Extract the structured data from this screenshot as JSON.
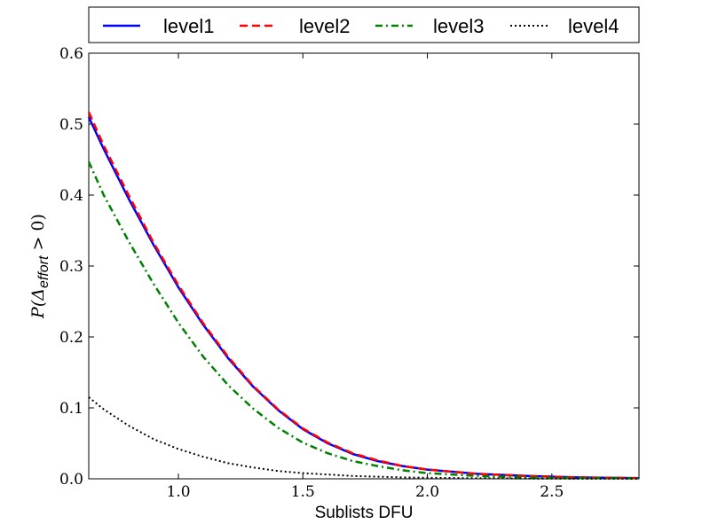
{
  "chart_data": {
    "type": "line",
    "xlabel": "Sublists DFU",
    "ylabel_main": "P(Δ",
    "ylabel_sub": "effort",
    "ylabel_tail": " > 0)",
    "xlim": [
      0.64,
      2.85
    ],
    "ylim": [
      0.0,
      0.6
    ],
    "xticks": [
      1.0,
      1.5,
      2.0,
      2.5
    ],
    "xtick_labels": [
      "1.0",
      "1.5",
      "2.0",
      "2.5"
    ],
    "yticks": [
      0.0,
      0.1,
      0.2,
      0.3,
      0.4,
      0.5,
      0.6
    ],
    "ytick_labels": [
      "0.0",
      "0.1",
      "0.2",
      "0.3",
      "0.4",
      "0.5",
      "0.6"
    ],
    "legend_position": "top, outside plot, single row",
    "x": [
      0.64,
      0.7,
      0.8,
      0.9,
      1.0,
      1.1,
      1.2,
      1.3,
      1.4,
      1.5,
      1.6,
      1.7,
      1.8,
      1.9,
      2.0,
      2.2,
      2.4,
      2.6,
      2.85
    ],
    "series": [
      {
        "name": "level1",
        "color": "#0000ff",
        "style": "solid",
        "values": [
          0.51,
          0.465,
          0.395,
          0.33,
          0.27,
          0.217,
          0.17,
          0.13,
          0.097,
          0.07,
          0.05,
          0.035,
          0.025,
          0.018,
          0.013,
          0.007,
          0.004,
          0.002,
          0.001
        ]
      },
      {
        "name": "level2",
        "color": "#ff0000",
        "style": "dashed",
        "values": [
          0.517,
          0.47,
          0.4,
          0.333,
          0.273,
          0.219,
          0.172,
          0.131,
          0.098,
          0.071,
          0.051,
          0.036,
          0.026,
          0.018,
          0.013,
          0.007,
          0.004,
          0.002,
          0.001
        ]
      },
      {
        "name": "level3",
        "color": "#008000",
        "style": "dashdot",
        "values": [
          0.447,
          0.4,
          0.335,
          0.275,
          0.22,
          0.172,
          0.132,
          0.099,
          0.072,
          0.051,
          0.036,
          0.025,
          0.018,
          0.012,
          0.008,
          0.004,
          0.002,
          0.001,
          0.0005
        ]
      },
      {
        "name": "level4",
        "color": "#000000",
        "style": "dotted",
        "values": [
          0.115,
          0.098,
          0.075,
          0.056,
          0.042,
          0.031,
          0.022,
          0.016,
          0.011,
          0.008,
          0.006,
          0.004,
          0.003,
          0.002,
          0.0015,
          0.0008,
          0.0004,
          0.0002,
          0.0001
        ]
      }
    ]
  }
}
